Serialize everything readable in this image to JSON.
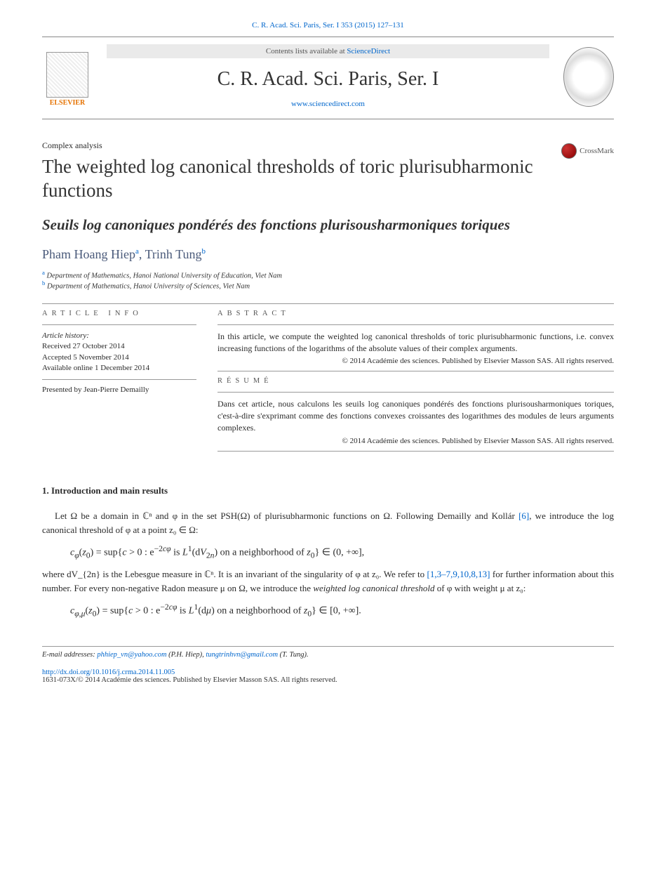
{
  "header": {
    "journal_ref": "C. R. Acad. Sci. Paris, Ser. I 353 (2015) 127–131",
    "contents_prefix": "Contents lists available at ",
    "contents_link": "ScienceDirect",
    "journal_title": "C. R. Acad. Sci. Paris, Ser. I",
    "sd_url": "www.sciencedirect.com",
    "elsevier_label": "ELSEVIER",
    "crossmark_label": "CrossMark"
  },
  "article": {
    "section": "Complex analysis",
    "title_en": "The weighted log canonical thresholds of toric plurisubharmonic functions",
    "title_fr": "Seuils log canoniques pondérés des fonctions plurisousharmoniques toriques",
    "authors": [
      {
        "name": "Pham Hoang Hiep",
        "mark": "a"
      },
      {
        "name": "Trinh Tung",
        "mark": "b"
      }
    ],
    "affiliations": [
      {
        "mark": "a",
        "text": "Department of Mathematics, Hanoi National University of Education, Viet Nam"
      },
      {
        "mark": "b",
        "text": "Department of Mathematics, Hanoi University of Sciences, Viet Nam"
      }
    ]
  },
  "info": {
    "heading": "article info",
    "history_label": "Article history:",
    "received": "Received 27 October 2014",
    "accepted": "Accepted 5 November 2014",
    "online": "Available online 1 December 2014",
    "presented": "Presented by Jean-Pierre Demailly"
  },
  "abstract": {
    "heading_en": "abstract",
    "text_en": "In this article, we compute the weighted log canonical thresholds of toric plurisubharmonic functions, i.e. convex increasing functions of the logarithms of the absolute values of their complex arguments.",
    "copyright_en": "© 2014 Académie des sciences. Published by Elsevier Masson SAS. All rights reserved.",
    "heading_fr": "résumé",
    "text_fr": "Dans cet article, nous calculons les seuils log canoniques pondérés des fonctions plurisousharmoniques toriques, c'est-à-dire s'exprimant comme des fonctions convexes croissantes des logarithmes des modules de leurs arguments complexes.",
    "copyright_fr": "© 2014 Académie des sciences. Published by Elsevier Masson SAS. All rights reserved."
  },
  "body": {
    "section_number": "1.",
    "section_title": "Introduction and main results",
    "para1_a": "Let Ω be a domain in ℂⁿ and φ in the set PSH(Ω) of plurisubharmonic functions on Ω. Following Demailly and Kollár ",
    "para1_ref": "[6]",
    "para1_b": ", we introduce the log canonical threshold of φ at a point z₀ ∈ Ω:",
    "formula1": "c_φ(z₀) = sup{c > 0 : e^{−2cφ} is L¹(dV_{2n}) on a neighborhood of z₀} ∈ (0, +∞],",
    "para2_a": "where dV_{2n} is the Lebesgue measure in ℂⁿ. It is an invariant of the singularity of φ at z₀. We refer to ",
    "para2_ref": "[1,3–7,9,10,8,13]",
    "para2_b": " for further information about this number. For every non-negative Radon measure μ on Ω, we introduce the ",
    "para2_em": "weighted log canonical threshold",
    "para2_c": " of φ with weight μ at z₀:",
    "formula2": "c_{φ,μ}(z₀) = sup{c > 0 : e^{−2cφ} is L¹(dμ) on a neighborhood of z₀} ∈ [0, +∞]."
  },
  "footer": {
    "email_label": "E-mail addresses:",
    "email1": "phhiep_vn@yahoo.com",
    "email1_who": "(P.H. Hiep),",
    "email2": "tungtrinhvn@gmail.com",
    "email2_who": "(T. Tung).",
    "doi": "http://dx.doi.org/10.1016/j.crma.2014.11.005",
    "issn_copy": "1631-073X/© 2014 Académie des sciences. Published by Elsevier Masson SAS. All rights reserved."
  },
  "colors": {
    "link": "#0066cc",
    "text": "#2a2a2a",
    "author": "#4a5a7a",
    "rule": "#999999",
    "elsevier": "#e57200"
  }
}
